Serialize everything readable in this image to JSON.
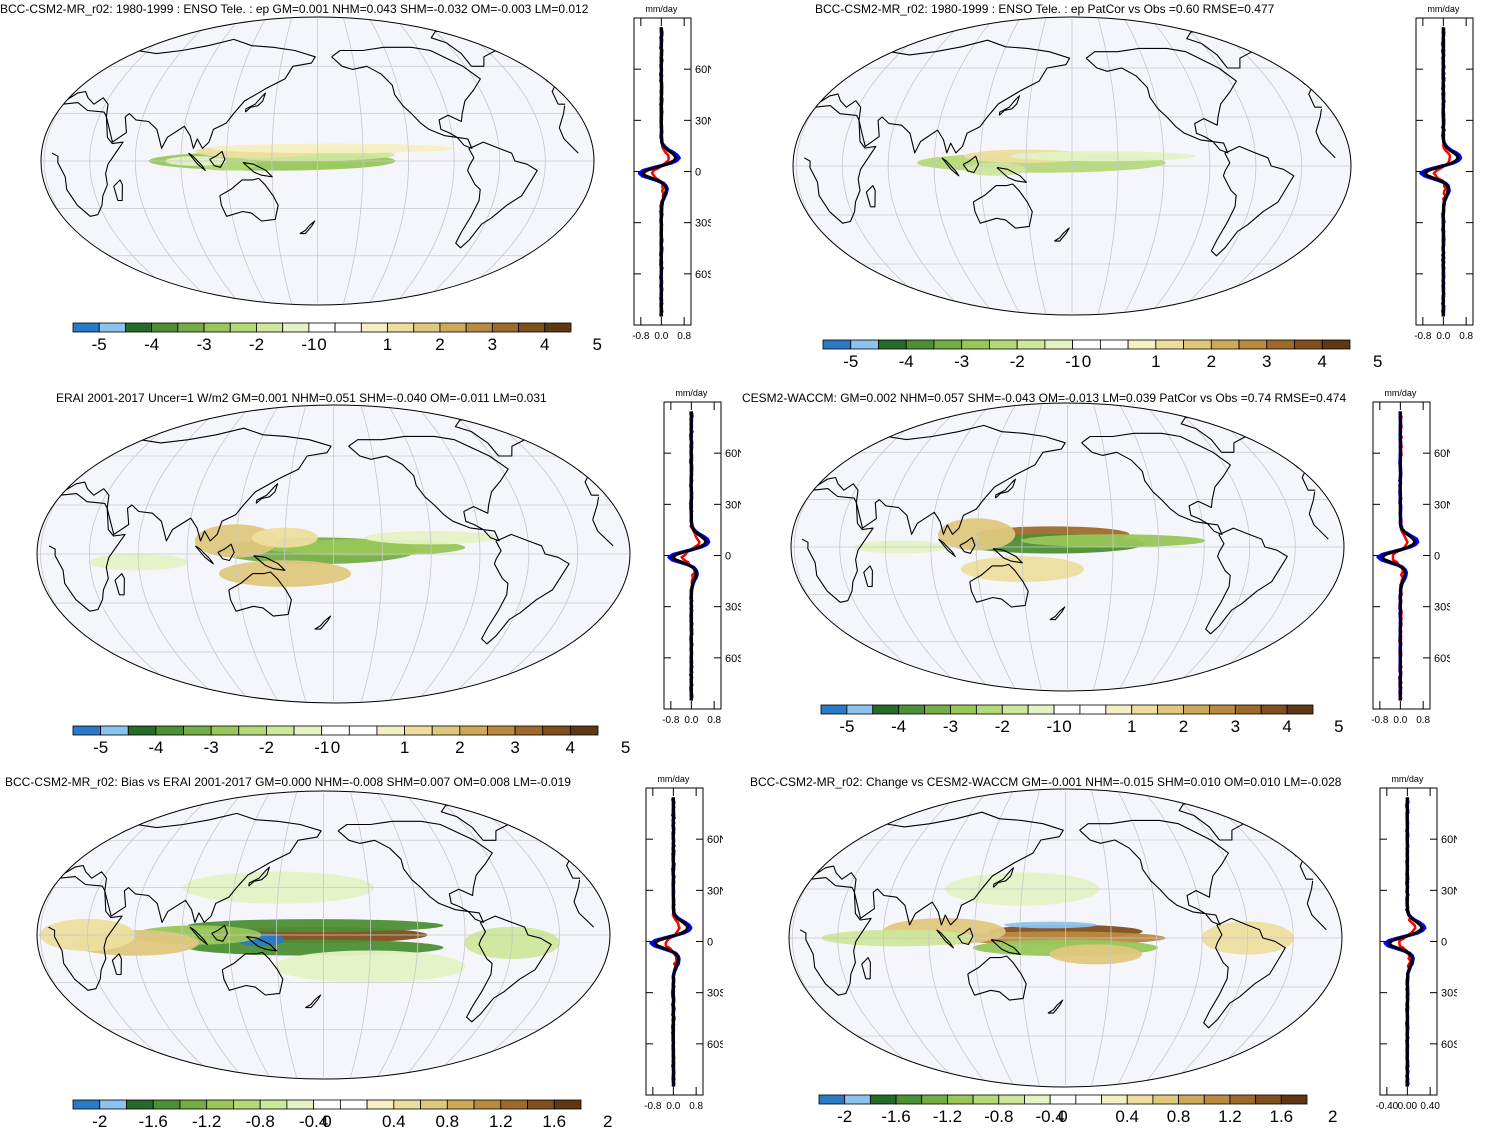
{
  "panels": [
    {
      "id": "p1",
      "title": "BCC-CSM2-MR_r02: 1980-1999 : ENSO Tele. : ep GM=0.001 NHM=0.043 SHM=-0.032 OM=-0.003 LM=0.012",
      "zonal_unit": "mm/day",
      "zonal_xticks": [
        "-0.8",
        "0.0",
        "0.8"
      ],
      "zonal_lat_labels": [
        "60N",
        "30N",
        "0",
        "30S",
        "60S"
      ],
      "colorbar_labels": [
        "-5",
        "-4",
        "-3",
        "-2",
        "-1",
        "0",
        "1",
        "2",
        "3",
        "4",
        "5"
      ]
    },
    {
      "id": "p2",
      "title": "BCC-CSM2-MR_r02: 1980-1999 : ENSO Tele. : ep PatCor vs Obs =0.60 RMSE=0.477",
      "zonal_unit": "mm/day",
      "zonal_xticks": [
        "-0.8",
        "0.0",
        "0.8"
      ],
      "zonal_lat_labels": [],
      "colorbar_labels": [
        "-5",
        "-4",
        "-3",
        "-2",
        "-1",
        "0",
        "1",
        "2",
        "3",
        "4",
        "5"
      ]
    },
    {
      "id": "p3",
      "title": "ERAI 2001-2017 Uncer=1 W/m2 GM=0.001 NHM=0.051 SHM=-0.040 OM=-0.011 LM=0.031",
      "zonal_unit": "mm/day",
      "zonal_xticks": [
        "-0.8",
        "0.0",
        "0.8"
      ],
      "zonal_lat_labels": [
        "60N",
        "30N",
        "0",
        "30S",
        "60S"
      ],
      "colorbar_labels": [
        "-5",
        "-4",
        "-3",
        "-2",
        "-1",
        "0",
        "1",
        "2",
        "3",
        "4",
        "5"
      ]
    },
    {
      "id": "p4",
      "title": "CESM2-WACCM: GM=0.002 NHM=0.057 SHM=-0.043 OM=-0.013 LM=0.039 PatCor vs Obs =0.74 RMSE=0.474",
      "zonal_unit": "mm/day",
      "zonal_xticks": [
        "-0.8",
        "0.0",
        "0.8"
      ],
      "zonal_lat_labels": [
        "60N",
        "30N",
        "0",
        "30S",
        "60S"
      ],
      "colorbar_labels": [
        "-5",
        "-4",
        "-3",
        "-2",
        "-1",
        "0",
        "1",
        "2",
        "3",
        "4",
        "5"
      ]
    },
    {
      "id": "p5",
      "title": "BCC-CSM2-MR_r02: Bias vs ERAI 2001-2017 GM=0.000 NHM=-0.008 SHM=0.007 OM=0.008 LM=-0.019",
      "zonal_unit": "mm/day",
      "zonal_xticks": [
        "-0.8",
        "0.0",
        "0.8"
      ],
      "zonal_lat_labels": [
        "60N",
        "30N",
        "0",
        "30S",
        "60S"
      ],
      "colorbar_labels": [
        "-2",
        "-1.6",
        "-1.2",
        "-0.8",
        "-0.4",
        "0",
        "0.4",
        "0.8",
        "1.2",
        "1.6",
        "2"
      ]
    },
    {
      "id": "p6",
      "title": "BCC-CSM2-MR_r02: Change vs CESM2-WACCM GM=-0.001 NHM=-0.015 SHM=0.010 OM=0.010 LM=-0.028",
      "zonal_unit": "mm/day",
      "zonal_xticks": [
        "-0.40",
        "0.00",
        "0.40"
      ],
      "zonal_lat_labels": [
        "60N",
        "30N",
        "0",
        "30S",
        "60S"
      ],
      "colorbar_labels": [
        "-2",
        "-1.6",
        "-1.2",
        "-0.8",
        "-0.4",
        "0",
        "0.4",
        "0.8",
        "1.2",
        "1.6",
        "2"
      ]
    }
  ],
  "colors": {
    "colorbar": [
      "#2b79c9",
      "#8cc3ee",
      "#276b2b",
      "#4d8f35",
      "#74ad45",
      "#98c659",
      "#b4d977",
      "#cde79b",
      "#e4f2c5",
      "#ffffff",
      "#ffffff",
      "#f5efc4",
      "#eddea0",
      "#dfc77d",
      "#cfa95a",
      "#b98a40",
      "#9d6a2c",
      "#7f4f1e",
      "#5e3814"
    ],
    "map_bg": "#f5f6fb",
    "grid": "#c8c8c8",
    "zonal_model": "#0000ff",
    "zonal_obs": "#ff0000",
    "zonal_mean": "#000000"
  }
}
